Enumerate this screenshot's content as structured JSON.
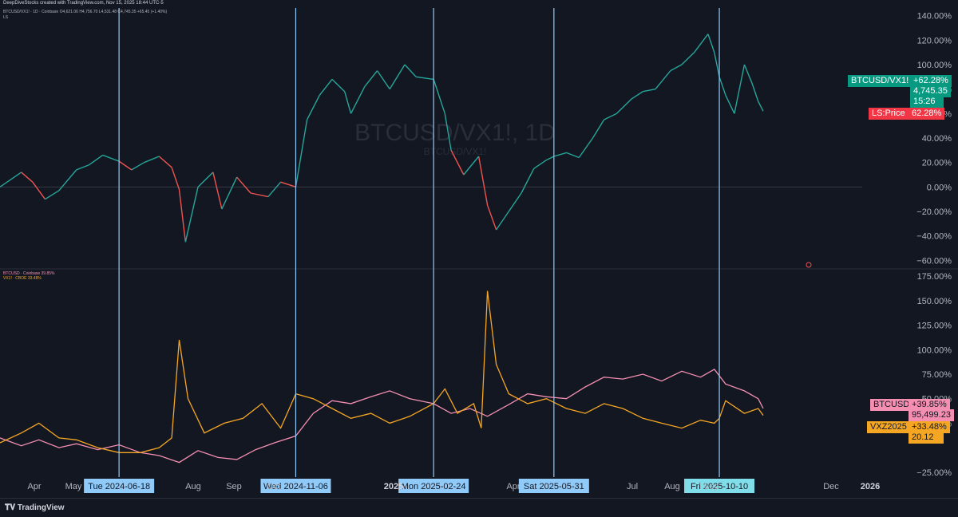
{
  "header": {
    "attribution": "DeepDiveStocks created with TradingView.com, Nov 15, 2025 18:44 UTC-5",
    "top_legend": "BTCUSD/VX1! · 1D · Coinbase  O4,621.06  H4,756.70  L4,531.48  C4,745.35  +65.45 (+1.40%)",
    "top_sublegend": "LS",
    "bottom_legend_1": "BTCUSD · Coinbase  39.85%",
    "bottom_legend_2": "VX1! · CBOE  33.48%"
  },
  "watermark": {
    "title": "BTCUSD/VX1!, 1D",
    "subtitle": "BTCUSD/VX1!"
  },
  "colors": {
    "background": "#131722",
    "up": "#26a69a",
    "down": "#ef5350",
    "btc": "#f48fb1",
    "vxz": "#f5a623",
    "vline": "#90caf9",
    "grid": "#2a2e39",
    "tag_green": "#089981",
    "tag_red": "#f23645"
  },
  "chart_data": [
    {
      "type": "line",
      "title": "BTCUSD/VX1!, 1D",
      "xlabel": "",
      "ylabel": "",
      "x_ticks": [
        "Apr",
        "May",
        "Aug",
        "Sep",
        "Oct",
        "2025",
        "Apr",
        "Jul",
        "Aug",
        "Sep",
        "Dec",
        "2026"
      ],
      "y_ticks": [
        "140.00%",
        "120.00%",
        "100.00%",
        "80.00%",
        "60.00%",
        "40.00%",
        "20.00%",
        "0.00%",
        "−20.00%",
        "−40.00%",
        "−60.00%"
      ],
      "ylim": [
        -65,
        145
      ],
      "date_range": [
        "2024-03-15",
        "2026-02-01"
      ],
      "series": [
        {
          "name": "BTCUSD/VX1!",
          "dates": [
            "2024-03-15",
            "2024-04-01",
            "2024-04-10",
            "2024-04-20",
            "2024-05-01",
            "2024-05-15",
            "2024-05-25",
            "2024-06-05",
            "2024-06-18",
            "2024-06-28",
            "2024-07-08",
            "2024-07-20",
            "2024-07-30",
            "2024-08-05",
            "2024-08-10",
            "2024-08-20",
            "2024-09-01",
            "2024-09-08",
            "2024-09-20",
            "2024-10-01",
            "2024-10-15",
            "2024-10-25",
            "2024-11-06",
            "2024-11-15",
            "2024-11-25",
            "2024-12-05",
            "2024-12-15",
            "2024-12-20",
            "2024-12-31",
            "2025-01-10",
            "2025-01-20",
            "2025-02-01",
            "2025-02-10",
            "2025-02-24",
            "2025-03-05",
            "2025-03-10",
            "2025-03-20",
            "2025-04-01",
            "2025-04-08",
            "2025-04-15",
            "2025-04-25",
            "2025-05-05",
            "2025-05-15",
            "2025-05-25",
            "2025-05-31",
            "2025-06-10",
            "2025-06-20",
            "2025-07-01",
            "2025-07-10",
            "2025-07-20",
            "2025-08-01",
            "2025-08-10",
            "2025-08-20",
            "2025-09-01",
            "2025-09-10",
            "2025-09-20",
            "2025-10-01",
            "2025-10-06",
            "2025-10-10",
            "2025-10-15",
            "2025-10-22",
            "2025-10-30",
            "2025-11-05",
            "2025-11-10",
            "2025-11-14"
          ],
          "values": [
            0,
            12,
            4,
            -10,
            -3,
            14,
            18,
            26,
            21,
            14,
            20,
            25,
            16,
            -2,
            -45,
            0,
            12,
            -18,
            8,
            -5,
            -8,
            4,
            0,
            55,
            75,
            88,
            78,
            60,
            82,
            95,
            80,
            100,
            90,
            88,
            60,
            30,
            10,
            25,
            -15,
            -35,
            -20,
            -5,
            15,
            22,
            25,
            28,
            24,
            40,
            55,
            60,
            72,
            78,
            80,
            95,
            100,
            110,
            125,
            110,
            90,
            75,
            60,
            100,
            85,
            70,
            62
          ]
        }
      ]
    },
    {
      "type": "line",
      "x_ticks": [
        "Apr",
        "May",
        "Aug",
        "Sep",
        "Oct",
        "2025",
        "Apr",
        "Jul",
        "Aug",
        "Sep",
        "Dec",
        "2026"
      ],
      "y_ticks": [
        "175.00%",
        "150.00%",
        "125.00%",
        "100.00%",
        "75.00%",
        "50.00%",
        "25.00%",
        "−25.00%"
      ],
      "ylim": [
        -30,
        180
      ],
      "date_range": [
        "2024-03-15",
        "2026-02-01"
      ],
      "series": [
        {
          "name": "BTCUSD",
          "dates": [
            "2024-03-15",
            "2024-04-01",
            "2024-04-15",
            "2024-05-01",
            "2024-05-15",
            "2024-06-01",
            "2024-06-18",
            "2024-07-05",
            "2024-07-20",
            "2024-08-05",
            "2024-08-20",
            "2024-09-05",
            "2024-09-20",
            "2024-10-05",
            "2024-10-20",
            "2024-11-06",
            "2024-11-20",
            "2024-12-05",
            "2024-12-20",
            "2025-01-05",
            "2025-01-20",
            "2025-02-05",
            "2025-02-24",
            "2025-03-10",
            "2025-03-25",
            "2025-04-08",
            "2025-04-25",
            "2025-05-10",
            "2025-05-25",
            "2025-06-10",
            "2025-06-25",
            "2025-07-10",
            "2025-07-25",
            "2025-08-10",
            "2025-08-25",
            "2025-09-10",
            "2025-09-25",
            "2025-10-06",
            "2025-10-15",
            "2025-10-30",
            "2025-11-10",
            "2025-11-14"
          ],
          "values": [
            10,
            2,
            8,
            0,
            4,
            -2,
            3,
            -5,
            -8,
            -15,
            -3,
            -10,
            -12,
            -2,
            5,
            12,
            35,
            48,
            45,
            52,
            58,
            50,
            45,
            35,
            40,
            32,
            44,
            55,
            52,
            50,
            62,
            72,
            70,
            75,
            68,
            78,
            72,
            80,
            65,
            58,
            50,
            40
          ]
        },
        {
          "name": "VXZ2025",
          "dates": [
            "2024-03-15",
            "2024-04-01",
            "2024-04-15",
            "2024-05-01",
            "2024-05-15",
            "2024-06-01",
            "2024-06-18",
            "2024-07-05",
            "2024-07-20",
            "2024-07-30",
            "2024-08-05",
            "2024-08-12",
            "2024-08-25",
            "2024-09-10",
            "2024-09-25",
            "2024-10-10",
            "2024-10-25",
            "2024-11-06",
            "2024-11-20",
            "2024-12-05",
            "2024-12-20",
            "2025-01-05",
            "2025-01-20",
            "2025-02-05",
            "2025-02-24",
            "2025-03-05",
            "2025-03-15",
            "2025-03-28",
            "2025-04-03",
            "2025-04-08",
            "2025-04-15",
            "2025-04-25",
            "2025-05-10",
            "2025-05-25",
            "2025-06-10",
            "2025-06-25",
            "2025-07-10",
            "2025-07-25",
            "2025-08-10",
            "2025-08-25",
            "2025-09-10",
            "2025-09-25",
            "2025-10-06",
            "2025-10-10",
            "2025-10-15",
            "2025-10-30",
            "2025-11-10",
            "2025-11-14"
          ],
          "values": [
            5,
            15,
            25,
            10,
            8,
            0,
            -5,
            -5,
            0,
            10,
            110,
            50,
            15,
            25,
            30,
            45,
            20,
            55,
            50,
            40,
            30,
            35,
            25,
            32,
            45,
            60,
            35,
            45,
            20,
            160,
            85,
            55,
            45,
            50,
            40,
            35,
            45,
            40,
            30,
            25,
            20,
            28,
            25,
            30,
            48,
            35,
            40,
            33
          ]
        }
      ]
    }
  ],
  "vertical_markers": [
    {
      "date": "2024-06-18",
      "label": "Tue 2024-06-18"
    },
    {
      "date": "2024-11-06",
      "label": "Wed 2024-11-06"
    },
    {
      "date": "2025-02-24",
      "label": "Mon 2025-02-24"
    },
    {
      "date": "2025-05-31",
      "label": "Sat 2025-05-31"
    },
    {
      "date": "2025-10-10",
      "label": "Fri 2025-10-10"
    }
  ],
  "tags": {
    "ratio": {
      "label": "BTCUSD/VX1!",
      "change": "+62.28%",
      "price": "4,745.35",
      "time": "15:26"
    },
    "ls": {
      "label": "LS:Price",
      "value": "62.28%"
    },
    "btc": {
      "label": "BTCUSD",
      "change": "+39.85%",
      "price": "95,499.23"
    },
    "vxz": {
      "label": "VXZ2025",
      "change": "+33.48%",
      "price": "20.12"
    }
  },
  "footer": {
    "brand": "TradingView"
  }
}
